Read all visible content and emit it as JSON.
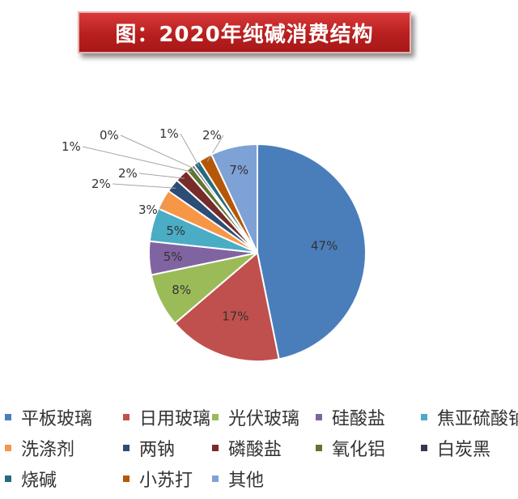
{
  "chart_data": {
    "type": "pie",
    "title": "图：2020年纯碱消费结构",
    "slices": [
      {
        "name": "平板玻璃",
        "value": 47,
        "label": "47%",
        "color": "#4a7ebb"
      },
      {
        "name": "日用玻璃",
        "value": 17,
        "label": "17%",
        "color": "#c0504d"
      },
      {
        "name": "光伏玻璃",
        "value": 8,
        "label": "8%",
        "color": "#9bbb59"
      },
      {
        "name": "硅酸盐",
        "value": 5,
        "label": "5%",
        "color": "#8064a2"
      },
      {
        "name": "焦亚硫酸钠",
        "value": 5,
        "label": "5%",
        "color": "#4bacc6"
      },
      {
        "name": "洗涤剂",
        "value": 3,
        "label": "3%",
        "color": "#f79646"
      },
      {
        "name": "两钠",
        "value": 2,
        "label": "2%",
        "color": "#2c4d75"
      },
      {
        "name": "磷酸盐",
        "value": 2,
        "label": "2%",
        "color": "#772c2a"
      },
      {
        "name": "氧化铝",
        "value": 1,
        "label": "1%",
        "color": "#5f7530"
      },
      {
        "name": "白炭黑",
        "value": 0.4,
        "label": "0%",
        "color": "#403152"
      },
      {
        "name": "烧碱",
        "value": 1,
        "label": "1%",
        "color": "#276a7c"
      },
      {
        "name": "小苏打",
        "value": 2,
        "label": "2%",
        "color": "#b65708"
      },
      {
        "name": "其他",
        "value": 7,
        "label": "7%",
        "color": "#7ea2d6"
      }
    ],
    "legend_position": "bottom"
  }
}
